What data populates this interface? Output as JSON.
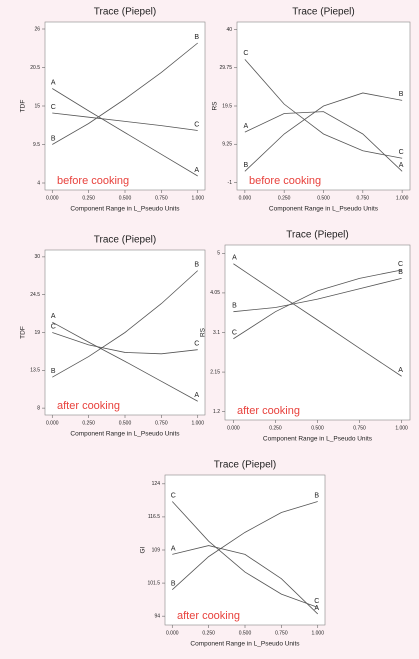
{
  "chart_data": [
    {
      "type": "line",
      "title": "Trace (Piepel)",
      "x_label": "Component Range in L_Pseudo Units",
      "y_label": "TDF",
      "annotation": "before cooking",
      "x": [
        0,
        0.25,
        0.5,
        0.75,
        1
      ],
      "xlim": [
        -0.05,
        1.05
      ],
      "xticks": [
        {
          "value": 0,
          "label": "0.000"
        },
        {
          "value": 0.25,
          "label": "0.250"
        },
        {
          "value": 0.5,
          "label": "0.500"
        },
        {
          "value": 0.75,
          "label": "0.750"
        },
        {
          "value": 1,
          "label": "1.000"
        }
      ],
      "ylim": [
        3,
        27
      ],
      "yticks": [
        4,
        9.5,
        15,
        20.5,
        26
      ],
      "series": [
        {
          "name": "A",
          "color": "#555555",
          "values": [
            17.5,
            14.3,
            11.2,
            8.1,
            5
          ]
        },
        {
          "name": "B",
          "color": "#555555",
          "values": [
            9.5,
            12.5,
            16,
            19.8,
            24
          ]
        },
        {
          "name": "C",
          "color": "#555555",
          "values": [
            14,
            13.4,
            12.8,
            12.2,
            11.5
          ]
        }
      ]
    },
    {
      "type": "line",
      "title": "Trace (Piepel)",
      "x_label": "Component Range in L_Pseudo Units",
      "y_label": "RS",
      "annotation": "before cooking",
      "x": [
        0,
        0.25,
        0.5,
        0.75,
        1
      ],
      "xlim": [
        -0.05,
        1.05
      ],
      "xticks": [
        {
          "value": 0,
          "label": "0.000"
        },
        {
          "value": 0.25,
          "label": "0.250"
        },
        {
          "value": 0.5,
          "label": "0.500"
        },
        {
          "value": 0.75,
          "label": "0.750"
        },
        {
          "value": 1,
          "label": "1.000"
        }
      ],
      "ylim": [
        -3,
        42
      ],
      "yticks": [
        -1,
        9.25,
        19.5,
        29.75,
        40
      ],
      "series": [
        {
          "name": "A",
          "color": "#555555",
          "values": [
            12.5,
            17.5,
            18,
            12,
            2
          ]
        },
        {
          "name": "B",
          "color": "#555555",
          "values": [
            2,
            12,
            19.5,
            23,
            21
          ]
        },
        {
          "name": "C",
          "color": "#555555",
          "values": [
            32,
            20,
            12,
            7.5,
            5.5
          ]
        }
      ]
    },
    {
      "type": "line",
      "title": "Trace (Piepel)",
      "x_label": "Component Range in L_Pseudo Units",
      "y_label": "TDF",
      "annotation": "after cooking",
      "x": [
        0,
        0.25,
        0.5,
        0.75,
        1
      ],
      "xlim": [
        -0.05,
        1.05
      ],
      "xticks": [
        {
          "value": 0,
          "label": "0.000"
        },
        {
          "value": 0.25,
          "label": "0.250"
        },
        {
          "value": 0.5,
          "label": "0.500"
        },
        {
          "value": 0.75,
          "label": "0.750"
        },
        {
          "value": 1,
          "label": "1.000"
        }
      ],
      "ylim": [
        7,
        31
      ],
      "yticks": [
        8,
        13.5,
        19,
        24.5,
        30
      ],
      "series": [
        {
          "name": "A",
          "color": "#555555",
          "values": [
            20.5,
            17.6,
            14.8,
            11.9,
            9
          ]
        },
        {
          "name": "B",
          "color": "#555555",
          "values": [
            12.5,
            15.5,
            19,
            23.2,
            28
          ]
        },
        {
          "name": "C",
          "color": "#555555",
          "values": [
            19,
            17.2,
            16.1,
            15.9,
            16.5
          ]
        }
      ]
    },
    {
      "type": "line",
      "title": "Trace (Piepel)",
      "x_label": "Component Range in L_Pseudo Units",
      "y_label": "RS",
      "annotation": "after cooking",
      "x": [
        0,
        0.25,
        0.5,
        0.75,
        1
      ],
      "xlim": [
        -0.05,
        1.05
      ],
      "xticks": [
        {
          "value": 0,
          "label": "0.000"
        },
        {
          "value": 0.25,
          "label": "0.250"
        },
        {
          "value": 0.5,
          "label": "0.500"
        },
        {
          "value": 0.75,
          "label": "0.750"
        },
        {
          "value": 1,
          "label": "1.000"
        }
      ],
      "ylim": [
        1,
        5.2
      ],
      "yticks": [
        1.2,
        2.15,
        3.1,
        4.05,
        5
      ],
      "series": [
        {
          "name": "A",
          "color": "#555555",
          "values": [
            4.75,
            4.07,
            3.4,
            2.72,
            2.05
          ]
        },
        {
          "name": "B",
          "color": "#555555",
          "values": [
            3.6,
            3.7,
            3.9,
            4.15,
            4.4
          ]
        },
        {
          "name": "C",
          "color": "#555555",
          "values": [
            2.95,
            3.6,
            4.1,
            4.4,
            4.6
          ]
        }
      ]
    },
    {
      "type": "line",
      "title": "Trace (Piepel)",
      "x_label": "Component Range in L_Pseudo Units",
      "y_label": "GI",
      "annotation": "after cooking",
      "x": [
        0,
        0.25,
        0.5,
        0.75,
        1
      ],
      "xlim": [
        -0.05,
        1.05
      ],
      "xticks": [
        {
          "value": 0,
          "label": "0.000"
        },
        {
          "value": 0.25,
          "label": "0.250"
        },
        {
          "value": 0.5,
          "label": "0.500"
        },
        {
          "value": 0.75,
          "label": "0.750"
        },
        {
          "value": 1,
          "label": "1.000"
        }
      ],
      "ylim": [
        92,
        126
      ],
      "yticks": [
        94,
        101.5,
        109,
        116.5,
        124
      ],
      "series": [
        {
          "name": "A",
          "color": "#555555",
          "values": [
            108,
            110,
            108,
            102.5,
            94.5
          ]
        },
        {
          "name": "B",
          "color": "#555555",
          "values": [
            100,
            107.5,
            113,
            117.5,
            120
          ]
        },
        {
          "name": "C",
          "color": "#555555",
          "values": [
            120,
            111,
            104,
            99,
            96
          ]
        }
      ]
    }
  ]
}
